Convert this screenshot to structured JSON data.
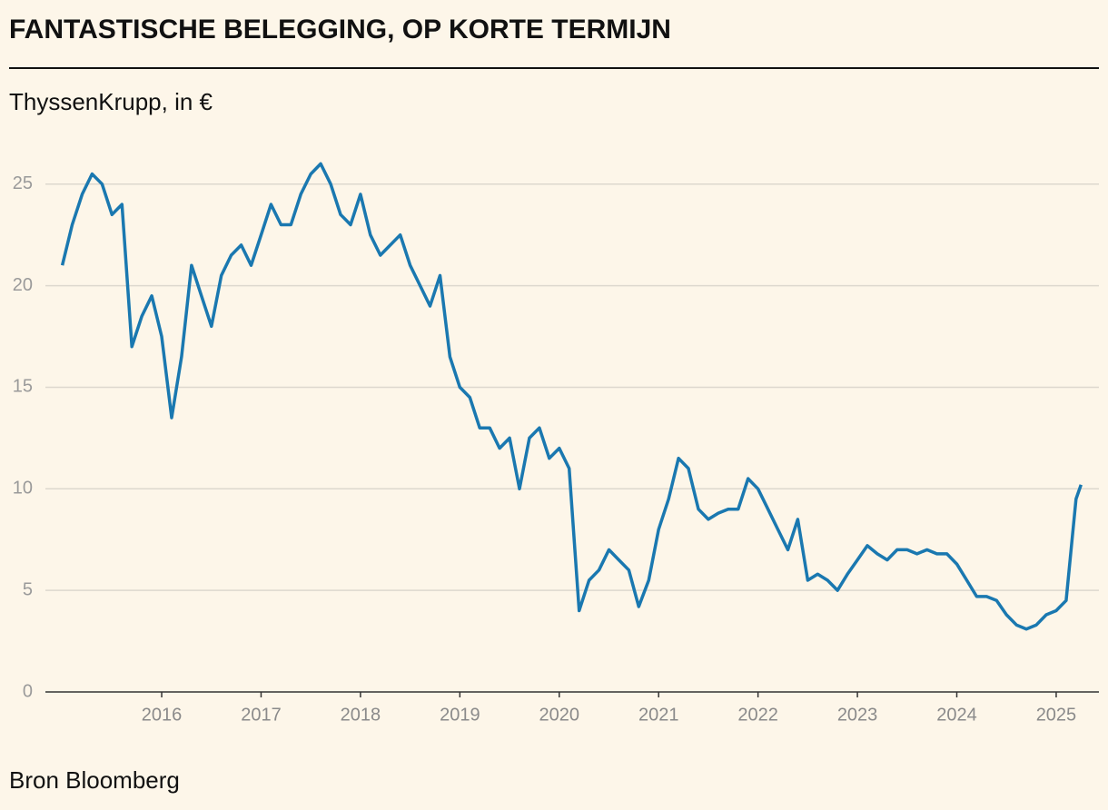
{
  "chart_data": {
    "type": "line",
    "title": "FANTASTISCHE BELEGGING, OP KORTE TERMIJN",
    "subtitle": "ThyssenKrupp, in €",
    "source": "Bron Bloomberg",
    "x": [
      2015.0,
      2015.1,
      2015.2,
      2015.3,
      2015.4,
      2015.5,
      2015.6,
      2015.7,
      2015.8,
      2015.9,
      2016.0,
      2016.1,
      2016.2,
      2016.3,
      2016.4,
      2016.5,
      2016.6,
      2016.7,
      2016.8,
      2016.9,
      2017.0,
      2017.1,
      2017.2,
      2017.3,
      2017.4,
      2017.5,
      2017.6,
      2017.7,
      2017.8,
      2017.9,
      2018.0,
      2018.1,
      2018.2,
      2018.3,
      2018.4,
      2018.5,
      2018.6,
      2018.7,
      2018.8,
      2018.9,
      2019.0,
      2019.1,
      2019.2,
      2019.3,
      2019.4,
      2019.5,
      2019.6,
      2019.7,
      2019.8,
      2019.9,
      2020.0,
      2020.1,
      2020.2,
      2020.3,
      2020.4,
      2020.5,
      2020.6,
      2020.7,
      2020.8,
      2020.9,
      2021.0,
      2021.1,
      2021.2,
      2021.3,
      2021.4,
      2021.5,
      2021.6,
      2021.7,
      2021.8,
      2021.9,
      2022.0,
      2022.1,
      2022.2,
      2022.3,
      2022.4,
      2022.5,
      2022.6,
      2022.7,
      2022.8,
      2022.9,
      2023.0,
      2023.1,
      2023.2,
      2023.3,
      2023.4,
      2023.5,
      2023.6,
      2023.7,
      2023.8,
      2023.9,
      2024.0,
      2024.1,
      2024.2,
      2024.3,
      2024.4,
      2024.5,
      2024.6,
      2024.7,
      2024.8,
      2024.9,
      2025.0,
      2025.1,
      2025.2,
      2025.25
    ],
    "series": [
      {
        "name": "ThyssenKrupp",
        "color": "#1a78b0",
        "values": [
          21.0,
          23.0,
          24.5,
          25.5,
          25.0,
          23.5,
          24.0,
          17.0,
          18.5,
          19.5,
          17.5,
          13.5,
          16.5,
          21.0,
          19.5,
          18.0,
          20.5,
          21.5,
          22.0,
          21.0,
          22.5,
          24.0,
          23.0,
          23.0,
          24.5,
          25.5,
          26.0,
          25.0,
          23.5,
          23.0,
          24.5,
          22.5,
          21.5,
          22.0,
          22.5,
          21.0,
          20.0,
          19.0,
          20.5,
          16.5,
          15.0,
          14.5,
          13.0,
          13.0,
          12.0,
          12.5,
          10.0,
          12.5,
          13.0,
          11.5,
          12.0,
          11.0,
          4.0,
          5.5,
          6.0,
          7.0,
          6.5,
          6.0,
          4.2,
          5.5,
          8.0,
          9.5,
          11.5,
          11.0,
          9.0,
          8.5,
          8.8,
          9.0,
          9.0,
          10.5,
          10.0,
          9.0,
          8.0,
          7.0,
          8.5,
          5.5,
          5.8,
          5.5,
          5.0,
          5.8,
          6.5,
          7.2,
          6.8,
          6.5,
          7.0,
          7.0,
          6.8,
          7.0,
          6.8,
          6.8,
          6.3,
          5.5,
          4.7,
          4.7,
          4.5,
          3.8,
          3.3,
          3.1,
          3.3,
          3.8,
          4.0,
          4.5,
          9.5,
          10.2
        ]
      }
    ],
    "xlim": [
      2014.83,
      2025.43
    ],
    "xticks": [
      2016,
      2017,
      2018,
      2019,
      2020,
      2021,
      2022,
      2023,
      2024,
      2025
    ],
    "ylim": [
      0,
      27
    ],
    "yticks": [
      0,
      5,
      10,
      15,
      20,
      25
    ],
    "grid": true
  }
}
